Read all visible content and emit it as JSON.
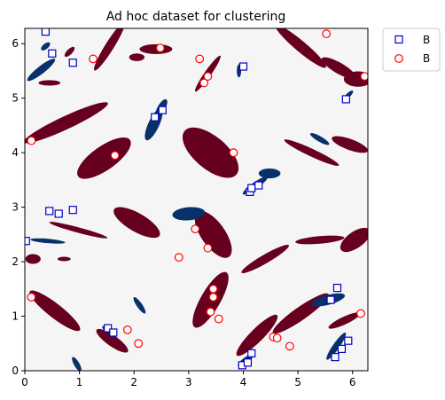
{
  "chart_data": {
    "type": "heatmap",
    "title": "Ad hoc dataset for clustering",
    "xlim": [
      0,
      6.28
    ],
    "ylim": [
      0,
      6.28
    ],
    "x_ticks": [
      0,
      1,
      2,
      3,
      4,
      5,
      6
    ],
    "y_ticks": [
      0,
      1,
      2,
      3,
      4,
      5,
      6
    ],
    "background_color": "#f5f5f5",
    "cluster_colors": {
      "B_blue": "#08306b",
      "B_red": "#67001f"
    },
    "legend": {
      "placement": "outside-top-right",
      "entries": [
        {
          "label": "B",
          "marker": "square",
          "color": "#0000cc"
        },
        {
          "label": "B",
          "marker": "circle",
          "color": "#ff0000"
        }
      ]
    },
    "regions_blue": [
      {
        "cx": 0.3,
        "cy": 5.52,
        "rx": 0.32,
        "ry": 0.07,
        "rot": 38
      },
      {
        "cx": 0.38,
        "cy": 5.95,
        "rx": 0.1,
        "ry": 0.05,
        "rot": 40
      },
      {
        "cx": 2.36,
        "cy": 4.52,
        "rx": 0.32,
        "ry": 0.1,
        "rot": 65
      },
      {
        "cx": 2.5,
        "cy": 4.82,
        "rx": 0.18,
        "ry": 0.07,
        "rot": 60
      },
      {
        "cx": 3.0,
        "cy": 2.88,
        "rx": 0.3,
        "ry": 0.12,
        "rot": 5
      },
      {
        "cx": 4.22,
        "cy": 3.4,
        "rx": 0.28,
        "ry": 0.06,
        "rot": 35
      },
      {
        "cx": 4.48,
        "cy": 3.62,
        "rx": 0.2,
        "ry": 0.09,
        "rot": 0
      },
      {
        "cx": 0.42,
        "cy": 2.38,
        "rx": 0.32,
        "ry": 0.04,
        "rot": -5
      },
      {
        "cx": 5.4,
        "cy": 4.25,
        "rx": 0.2,
        "ry": 0.05,
        "rot": -30
      },
      {
        "cx": 5.55,
        "cy": 1.3,
        "rx": 0.32,
        "ry": 0.09,
        "rot": 15
      },
      {
        "cx": 5.7,
        "cy": 0.45,
        "rx": 0.3,
        "ry": 0.06,
        "rot": 55
      },
      {
        "cx": 2.1,
        "cy": 1.2,
        "rx": 0.18,
        "ry": 0.05,
        "rot": -55
      },
      {
        "cx": 1.55,
        "cy": 0.72,
        "rx": 0.16,
        "ry": 0.05,
        "rot": -35
      },
      {
        "cx": 0.95,
        "cy": 0.12,
        "rx": 0.15,
        "ry": 0.05,
        "rot": -60
      },
      {
        "cx": 3.92,
        "cy": 5.5,
        "rx": 0.12,
        "ry": 0.04,
        "rot": 90
      },
      {
        "cx": 4.05,
        "cy": 0.2,
        "rx": 0.18,
        "ry": 0.05,
        "rot": 35
      },
      {
        "cx": 5.92,
        "cy": 5.05,
        "rx": 0.12,
        "ry": 0.04,
        "rot": 45
      }
    ],
    "regions_red": [
      {
        "cx": 0.75,
        "cy": 4.55,
        "rx": 0.85,
        "ry": 0.12,
        "rot": 25
      },
      {
        "cx": 1.45,
        "cy": 3.9,
        "rx": 0.58,
        "ry": 0.22,
        "rot": 35
      },
      {
        "cx": 3.4,
        "cy": 4.0,
        "rx": 0.62,
        "ry": 0.3,
        "rot": -40
      },
      {
        "cx": 2.05,
        "cy": 2.72,
        "rx": 0.48,
        "ry": 0.17,
        "rot": -30
      },
      {
        "cx": 3.45,
        "cy": 2.5,
        "rx": 0.5,
        "ry": 0.22,
        "rot": -55
      },
      {
        "cx": 3.4,
        "cy": 1.3,
        "rx": 0.58,
        "ry": 0.18,
        "rot": 60
      },
      {
        "cx": 0.55,
        "cy": 1.1,
        "rx": 0.58,
        "ry": 0.13,
        "rot": -38
      },
      {
        "cx": 1.6,
        "cy": 0.55,
        "rx": 0.35,
        "ry": 0.1,
        "rot": -35
      },
      {
        "cx": 1.55,
        "cy": 5.95,
        "rx": 0.52,
        "ry": 0.08,
        "rot": 58
      },
      {
        "cx": 2.4,
        "cy": 5.9,
        "rx": 0.3,
        "ry": 0.09,
        "rot": 0
      },
      {
        "cx": 2.05,
        "cy": 5.75,
        "rx": 0.14,
        "ry": 0.07,
        "rot": 0
      },
      {
        "cx": 3.35,
        "cy": 5.45,
        "rx": 0.4,
        "ry": 0.06,
        "rot": 55
      },
      {
        "cx": 5.05,
        "cy": 5.95,
        "rx": 0.6,
        "ry": 0.1,
        "rot": -40
      },
      {
        "cx": 5.75,
        "cy": 5.55,
        "rx": 0.36,
        "ry": 0.1,
        "rot": -30
      },
      {
        "cx": 6.1,
        "cy": 5.35,
        "rx": 0.26,
        "ry": 0.14,
        "rot": 0
      },
      {
        "cx": 5.25,
        "cy": 4.0,
        "rx": 0.55,
        "ry": 0.07,
        "rot": -25
      },
      {
        "cx": 5.95,
        "cy": 4.15,
        "rx": 0.35,
        "ry": 0.1,
        "rot": -20
      },
      {
        "cx": 5.4,
        "cy": 2.4,
        "rx": 0.45,
        "ry": 0.07,
        "rot": 5
      },
      {
        "cx": 6.05,
        "cy": 2.4,
        "rx": 0.32,
        "ry": 0.15,
        "rot": 35
      },
      {
        "cx": 4.4,
        "cy": 2.05,
        "rx": 0.5,
        "ry": 0.08,
        "rot": 30
      },
      {
        "cx": 5.05,
        "cy": 1.05,
        "rx": 0.62,
        "ry": 0.12,
        "rot": 35
      },
      {
        "cx": 5.85,
        "cy": 0.92,
        "rx": 0.32,
        "ry": 0.07,
        "rot": 25
      },
      {
        "cx": 4.25,
        "cy": 0.65,
        "rx": 0.52,
        "ry": 0.12,
        "rot": 45
      },
      {
        "cx": 0.15,
        "cy": 2.05,
        "rx": 0.14,
        "ry": 0.09,
        "rot": 0
      },
      {
        "cx": 0.98,
        "cy": 2.58,
        "rx": 0.55,
        "ry": 0.05,
        "rot": -15
      },
      {
        "cx": 0.72,
        "cy": 2.05,
        "rx": 0.12,
        "ry": 0.04,
        "rot": 0
      },
      {
        "cx": 0.45,
        "cy": 5.28,
        "rx": 0.2,
        "ry": 0.05,
        "rot": 0
      },
      {
        "cx": 0.82,
        "cy": 5.85,
        "rx": 0.12,
        "ry": 0.05,
        "rot": 45
      }
    ],
    "series": [
      {
        "name": "B",
        "marker": "square",
        "points": [
          [
            0.38,
            6.22
          ],
          [
            0.5,
            5.82
          ],
          [
            0.88,
            5.65
          ],
          [
            4.0,
            5.58
          ],
          [
            2.38,
            4.65
          ],
          [
            2.52,
            4.78
          ],
          [
            5.88,
            4.98
          ],
          [
            0.45,
            2.93
          ],
          [
            0.62,
            2.88
          ],
          [
            0.88,
            2.95
          ],
          [
            4.12,
            3.28
          ],
          [
            4.15,
            3.35
          ],
          [
            4.28,
            3.4
          ],
          [
            0.02,
            2.38
          ],
          [
            5.6,
            1.3
          ],
          [
            5.72,
            1.52
          ],
          [
            1.52,
            0.78
          ],
          [
            1.62,
            0.7
          ],
          [
            3.98,
            0.1
          ],
          [
            4.08,
            0.15
          ],
          [
            4.15,
            0.32
          ],
          [
            5.68,
            0.25
          ],
          [
            5.8,
            0.4
          ],
          [
            5.92,
            0.55
          ]
        ]
      },
      {
        "name": "B",
        "marker": "circle",
        "points": [
          [
            1.25,
            5.72
          ],
          [
            2.48,
            5.92
          ],
          [
            3.2,
            5.72
          ],
          [
            5.52,
            6.18
          ],
          [
            6.22,
            5.4
          ],
          [
            3.28,
            5.28
          ],
          [
            3.35,
            5.4
          ],
          [
            0.12,
            4.22
          ],
          [
            1.65,
            3.95
          ],
          [
            3.82,
            4.0
          ],
          [
            3.12,
            2.6
          ],
          [
            3.35,
            2.25
          ],
          [
            2.82,
            2.08
          ],
          [
            0.12,
            1.35
          ],
          [
            3.45,
            1.5
          ],
          [
            3.45,
            1.35
          ],
          [
            3.4,
            1.08
          ],
          [
            3.55,
            0.95
          ],
          [
            1.88,
            0.75
          ],
          [
            2.08,
            0.5
          ],
          [
            4.55,
            0.62
          ],
          [
            4.62,
            0.6
          ],
          [
            4.85,
            0.45
          ],
          [
            6.15,
            1.05
          ]
        ]
      }
    ]
  }
}
